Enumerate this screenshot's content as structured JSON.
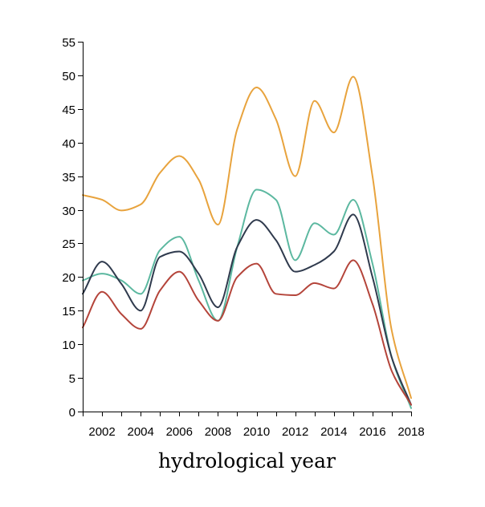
{
  "chart_data": {
    "type": "line",
    "xlabel": "hydrological year",
    "ylabel": "",
    "xlim": [
      2001,
      2018
    ],
    "ylim": [
      0,
      55
    ],
    "x_ticks": [
      2002,
      2004,
      2006,
      2008,
      2010,
      2012,
      2014,
      2016,
      2018
    ],
    "y_ticks": [
      0,
      5,
      10,
      15,
      20,
      25,
      30,
      35,
      40,
      45,
      50,
      55
    ],
    "grid": false,
    "legend": "none",
    "curve": "smooth",
    "x": [
      2001,
      2002,
      2003,
      2004,
      2005,
      2006,
      2007,
      2008,
      2009,
      2010,
      2011,
      2012,
      2013,
      2014,
      2015,
      2016,
      2017,
      2018
    ],
    "series": [
      {
        "color": "#e8a33d",
        "values": [
          32.2,
          31.5,
          29.9,
          30.8,
          35.5,
          38.0,
          34.5,
          27.8,
          42.0,
          48.2,
          43.5,
          35.0,
          46.2,
          41.5,
          49.8,
          35.0,
          12.0,
          2.0
        ]
      },
      {
        "color": "#5cb8a0",
        "values": [
          19.5,
          20.5,
          19.5,
          17.5,
          24.0,
          26.0,
          19.5,
          13.5,
          24.5,
          33.0,
          31.5,
          22.5,
          28.0,
          26.3,
          31.5,
          22.0,
          8.0,
          0.5
        ]
      },
      {
        "color": "#2f3a4d",
        "values": [
          17.5,
          22.3,
          19.0,
          15.0,
          23.0,
          23.8,
          20.5,
          15.5,
          24.5,
          28.5,
          25.5,
          20.8,
          21.8,
          23.8,
          29.3,
          20.0,
          8.0,
          1.0
        ]
      },
      {
        "color": "#b4443a",
        "values": [
          12.5,
          17.8,
          14.5,
          12.3,
          18.0,
          20.8,
          16.5,
          13.5,
          20.0,
          22.0,
          17.5,
          17.3,
          19.1,
          18.3,
          22.5,
          16.0,
          6.0,
          1.0
        ]
      }
    ]
  }
}
